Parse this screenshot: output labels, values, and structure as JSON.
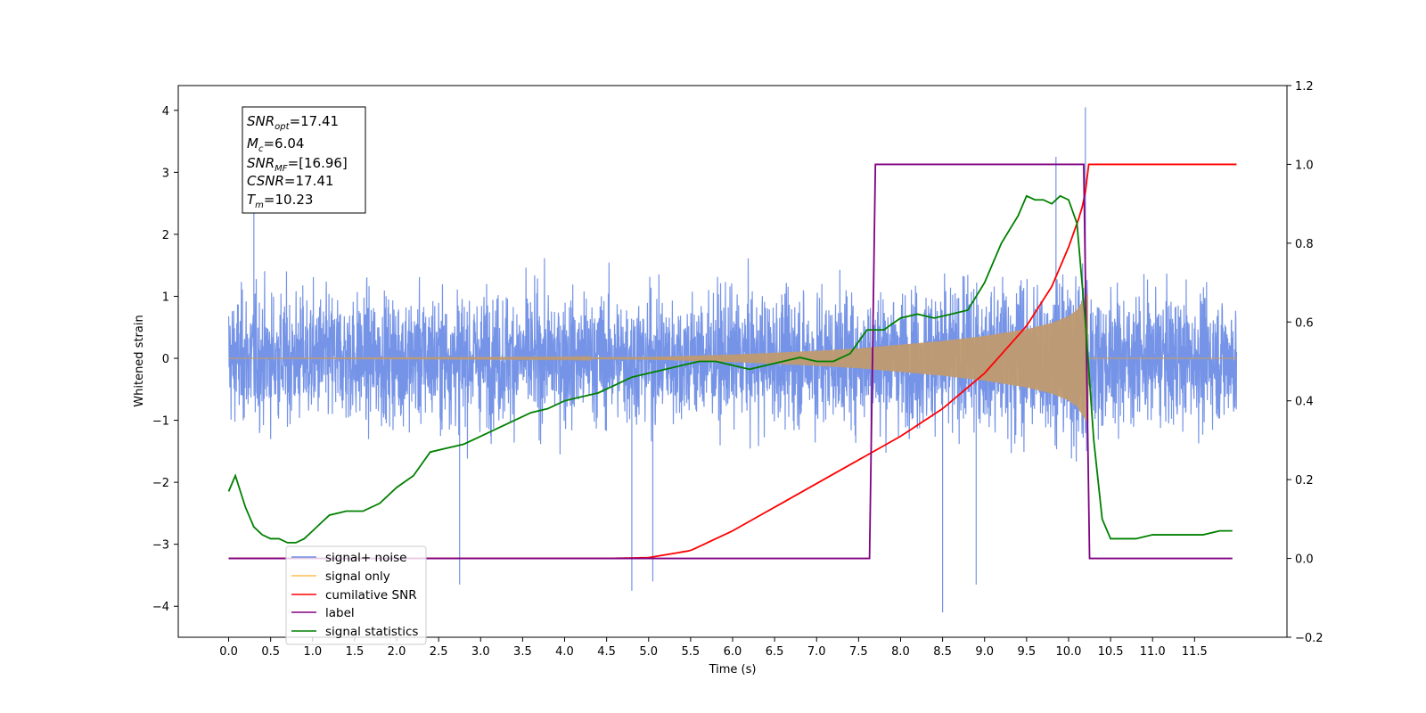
{
  "chart_data": {
    "type": "line",
    "xlabel": "Time (s)",
    "ylabel": "Whitened strain",
    "xlim": [
      -0.6,
      12.6
    ],
    "ylim": [
      -4.5,
      4.4
    ],
    "y2lim": [
      -0.2,
      1.2
    ],
    "grid": false,
    "legend_position": "lower-left",
    "x_ticks": [
      "0.0",
      "0.5",
      "1.0",
      "1.5",
      "2.0",
      "2.5",
      "3.0",
      "3.5",
      "4.0",
      "4.5",
      "5.0",
      "5.5",
      "6.0",
      "6.5",
      "7.0",
      "7.5",
      "8.0",
      "8.5",
      "9.0",
      "9.5",
      "10.0",
      "10.5",
      "11.0",
      "11.5"
    ],
    "y_ticks": [
      "4",
      "3",
      "2",
      "1",
      "0",
      "−1",
      "−2",
      "−3",
      "−4"
    ],
    "y2_ticks": [
      "1.2",
      "1.0",
      "0.8",
      "0.6",
      "0.4",
      "0.2",
      "0.0",
      "−0.2"
    ],
    "annotation": [
      {
        "symbol": "SNR",
        "sub": "opt",
        "value": "=17.41"
      },
      {
        "symbol": "M",
        "sub": "c",
        "value": "=6.04"
      },
      {
        "symbol": "SNR",
        "sub": "MF",
        "value": "=[16.96]"
      },
      {
        "symbol": "CSNR",
        "sub": "",
        "value": "=17.41"
      },
      {
        "symbol": "T",
        "sub": "m",
        "value": "=10.23"
      }
    ],
    "legend": [
      {
        "label": "signal+ noise",
        "color": "#6f8ee6"
      },
      {
        "label": "signal only",
        "color": "#ffbb55"
      },
      {
        "label": "cumilative SNR",
        "color": "#ff0000"
      },
      {
        "label": "label",
        "color": "#800080"
      },
      {
        "label": "signal statistics",
        "color": "#008000"
      }
    ],
    "series": [
      {
        "name": "signal+ noise",
        "axis": "left",
        "color": "#6f8ee6",
        "x_range": [
          0.0,
          12.0
        ],
        "typical_amplitude": 1.2,
        "peaks": [
          [
            0.3,
            3.3
          ],
          [
            2.75,
            -3.65
          ],
          [
            4.8,
            -3.75
          ],
          [
            5.05,
            -3.6
          ],
          [
            8.5,
            -4.1
          ],
          [
            8.9,
            -3.65
          ],
          [
            9.85,
            3.25
          ],
          [
            10.2,
            4.05
          ]
        ]
      },
      {
        "name": "signal only",
        "axis": "left",
        "color": "#ffbb55",
        "x_range": [
          0.0,
          12.0
        ],
        "merger_time": 10.23,
        "envelope_x": [
          0,
          4,
          5,
          5.5,
          6,
          6.5,
          7,
          7.5,
          8,
          8.5,
          9,
          9.5,
          9.8,
          10.0,
          10.1,
          10.18,
          10.23
        ],
        "envelope_y": [
          0,
          0.01,
          0.02,
          0.04,
          0.06,
          0.09,
          0.12,
          0.16,
          0.22,
          0.28,
          0.36,
          0.47,
          0.57,
          0.68,
          0.78,
          0.95,
          1.05
        ]
      },
      {
        "name": "cumilative SNR",
        "axis": "right",
        "color": "#ff0000",
        "x": [
          0,
          4.5,
          5.0,
          5.5,
          6.0,
          6.5,
          7.0,
          7.5,
          8.0,
          8.5,
          9.0,
          9.5,
          9.8,
          10.0,
          10.15,
          10.2,
          10.23,
          12.0
        ],
        "y": [
          0,
          0,
          0.002,
          0.02,
          0.07,
          0.13,
          0.19,
          0.25,
          0.31,
          0.38,
          0.47,
          0.59,
          0.69,
          0.79,
          0.88,
          0.93,
          1.0,
          1.0
        ]
      },
      {
        "name": "label",
        "axis": "right",
        "color": "#800080",
        "x": [
          0,
          7.63,
          7.7,
          10.18,
          10.25,
          11.95
        ],
        "y": [
          0,
          0,
          1,
          1,
          0,
          0
        ]
      },
      {
        "name": "signal statistics",
        "axis": "right",
        "color": "#008000",
        "x": [
          0,
          0.08,
          0.2,
          0.3,
          0.4,
          0.5,
          0.6,
          0.7,
          0.8,
          0.9,
          1.0,
          1.1,
          1.2,
          1.4,
          1.6,
          1.8,
          2.0,
          2.2,
          2.4,
          2.6,
          2.8,
          3.0,
          3.2,
          3.4,
          3.6,
          3.8,
          4.0,
          4.2,
          4.4,
          4.6,
          4.8,
          5.0,
          5.2,
          5.4,
          5.6,
          5.8,
          6.0,
          6.2,
          6.4,
          6.6,
          6.8,
          7.0,
          7.2,
          7.4,
          7.6,
          7.8,
          8.0,
          8.2,
          8.4,
          8.6,
          8.8,
          9.0,
          9.2,
          9.4,
          9.5,
          9.6,
          9.7,
          9.8,
          9.9,
          10.0,
          10.1,
          10.2,
          10.3,
          10.4,
          10.5,
          10.6,
          10.8,
          11.0,
          11.2,
          11.4,
          11.6,
          11.8,
          11.95
        ],
        "y": [
          0.17,
          0.21,
          0.13,
          0.08,
          0.06,
          0.05,
          0.05,
          0.04,
          0.04,
          0.05,
          0.07,
          0.09,
          0.11,
          0.12,
          0.12,
          0.14,
          0.18,
          0.21,
          0.27,
          0.28,
          0.29,
          0.31,
          0.33,
          0.35,
          0.37,
          0.38,
          0.4,
          0.41,
          0.42,
          0.44,
          0.46,
          0.47,
          0.48,
          0.49,
          0.5,
          0.5,
          0.49,
          0.48,
          0.49,
          0.5,
          0.51,
          0.5,
          0.5,
          0.52,
          0.58,
          0.58,
          0.61,
          0.62,
          0.61,
          0.62,
          0.63,
          0.7,
          0.8,
          0.87,
          0.92,
          0.91,
          0.91,
          0.9,
          0.92,
          0.91,
          0.85,
          0.6,
          0.3,
          0.1,
          0.05,
          0.05,
          0.05,
          0.06,
          0.06,
          0.06,
          0.06,
          0.07,
          0.07
        ]
      }
    ]
  }
}
